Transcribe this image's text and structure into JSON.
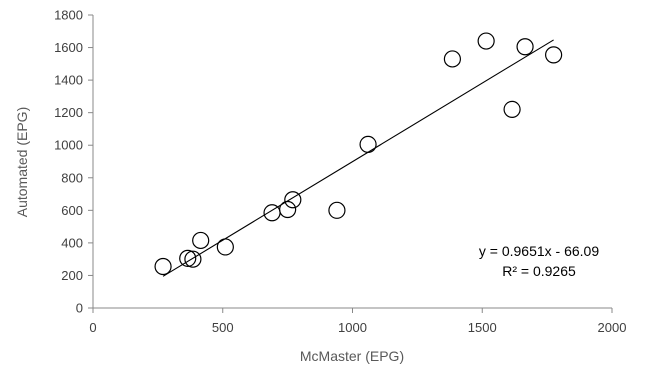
{
  "chart_data": {
    "type": "scatter",
    "title": "",
    "xlabel": "McMaster (EPG)",
    "ylabel": "Automated (EPG)",
    "xlim": [
      0,
      2000
    ],
    "ylim": [
      0,
      1800
    ],
    "x_ticks": [
      "0",
      "500",
      "1000",
      "1500",
      "2000"
    ],
    "y_ticks": [
      "0",
      "200",
      "400",
      "600",
      "800",
      "1000",
      "1200",
      "1400",
      "1600",
      "1800"
    ],
    "grid": false,
    "legend": "none",
    "points": [
      {
        "x": 270,
        "y": 255
      },
      {
        "x": 365,
        "y": 305
      },
      {
        "x": 385,
        "y": 300
      },
      {
        "x": 415,
        "y": 415
      },
      {
        "x": 510,
        "y": 375
      },
      {
        "x": 690,
        "y": 585
      },
      {
        "x": 750,
        "y": 605
      },
      {
        "x": 770,
        "y": 665
      },
      {
        "x": 940,
        "y": 600
      },
      {
        "x": 1060,
        "y": 1005
      },
      {
        "x": 1385,
        "y": 1530
      },
      {
        "x": 1515,
        "y": 1640
      },
      {
        "x": 1615,
        "y": 1220
      },
      {
        "x": 1665,
        "y": 1605
      },
      {
        "x": 1775,
        "y": 1555
      }
    ],
    "trendline": {
      "slope": 0.9651,
      "intercept": -66.09,
      "x_start": 270,
      "x_end": 1775
    },
    "equation_text": "y = 0.9651x - 66.09",
    "r2_text": "R² = 0.9265",
    "marker_style": "open-circle",
    "colors": {
      "axis": "#888888",
      "marker": "#000000",
      "trendline": "#000000",
      "tick_text": "#404040",
      "title_text": "#595959"
    }
  }
}
